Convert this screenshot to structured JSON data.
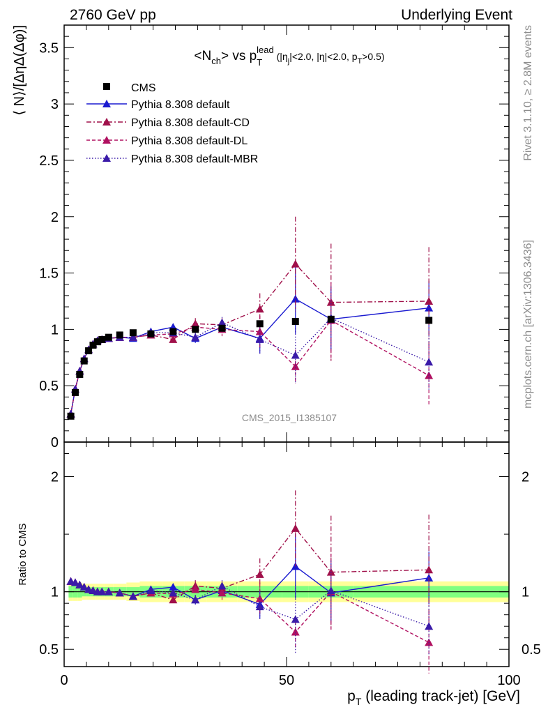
{
  "header": {
    "left": "2760 GeV pp",
    "right": "Underlying Event"
  },
  "side": {
    "rivet": "Rivet 3.1.10, ≥ 2.8M events",
    "mcplots": "mcplots.cern.ch [arXiv:1306.3436]"
  },
  "watermark": "CMS_2015_I1385107",
  "title_parts": {
    "a": "<N",
    "a_sub": "ch",
    "b": "> vs p",
    "b_sub": "T",
    "b_sup": "lead",
    "c": " (|η",
    "c_sub": "j",
    "d": "|<2.0, |η|<2.0, p",
    "d_sub": "T",
    "e": ">0.5)"
  },
  "colors": {
    "data": "#000000",
    "default": "#1a1ad0",
    "cd": "#a0104a",
    "dl": "#b01060",
    "mbr": "#3a1aa8",
    "band_inner": "#80ff80",
    "band_outer": "#ffff99"
  },
  "chart_data": [
    {
      "type": "scatter",
      "name": "main",
      "ylabel": "⟨ N⟩/[ΔηΔ(Δφ)]",
      "xlim": [
        0,
        100
      ],
      "ylim": [
        0,
        3.7
      ],
      "y_ticks": [
        0,
        0.5,
        1,
        1.5,
        2,
        2.5,
        3,
        3.5
      ],
      "y_tick_labels": [
        "0",
        "0.5",
        "1",
        "1.5",
        "2",
        "2.5",
        "3",
        "3.5"
      ],
      "legend_position": "top-left",
      "series": [
        {
          "name": "CMS",
          "key": "data",
          "x": [
            1.5,
            2.5,
            3.5,
            4.5,
            5.5,
            6.5,
            7.5,
            8.5,
            10,
            12.5,
            15.5,
            19.5,
            24.5,
            29.5,
            35.5,
            44,
            52,
            60,
            82
          ],
          "y": [
            0.23,
            0.44,
            0.6,
            0.72,
            0.81,
            0.86,
            0.89,
            0.91,
            0.93,
            0.95,
            0.97,
            0.96,
            0.98,
            1.0,
            1.01,
            1.05,
            1.07,
            1.09,
            1.08
          ]
        },
        {
          "name": "Pythia 8.308 default",
          "key": "default",
          "x": [
            1.5,
            2.5,
            3.5,
            4.5,
            5.5,
            6.5,
            7.5,
            8.5,
            10,
            12.5,
            15.5,
            19.5,
            24.5,
            29.5,
            35.5,
            44,
            52,
            60,
            82
          ],
          "y": [
            0.25,
            0.47,
            0.63,
            0.74,
            0.82,
            0.87,
            0.9,
            0.91,
            0.92,
            0.93,
            0.92,
            0.98,
            1.02,
            0.92,
            1.02,
            0.92,
            1.27,
            1.09,
            1.19
          ],
          "err": [
            0.01,
            0.01,
            0.01,
            0.01,
            0.01,
            0.01,
            0.01,
            0.01,
            0.01,
            0.01,
            0.02,
            0.02,
            0.03,
            0.04,
            0.05,
            0.13,
            0.31,
            0.28,
            0.24
          ]
        },
        {
          "name": "Pythia 8.308 default-CD",
          "key": "cd",
          "x": [
            1.5,
            2.5,
            3.5,
            4.5,
            5.5,
            6.5,
            7.5,
            8.5,
            10,
            12.5,
            15.5,
            19.5,
            24.5,
            29.5,
            35.5,
            44,
            52,
            60,
            82
          ],
          "y": [
            0.25,
            0.47,
            0.63,
            0.74,
            0.82,
            0.87,
            0.9,
            0.91,
            0.92,
            0.93,
            0.93,
            0.95,
            0.91,
            1.05,
            1.04,
            1.18,
            1.58,
            1.24,
            1.25
          ],
          "err": [
            0.01,
            0.01,
            0.01,
            0.01,
            0.01,
            0.01,
            0.01,
            0.01,
            0.01,
            0.01,
            0.02,
            0.02,
            0.03,
            0.05,
            0.06,
            0.14,
            0.42,
            0.52,
            0.48
          ]
        },
        {
          "name": "Pythia 8.308 default-DL",
          "key": "dl",
          "x": [
            1.5,
            2.5,
            3.5,
            4.5,
            5.5,
            6.5,
            7.5,
            8.5,
            10,
            12.5,
            15.5,
            19.5,
            24.5,
            29.5,
            35.5,
            44,
            52,
            60,
            82
          ],
          "y": [
            0.25,
            0.47,
            0.63,
            0.74,
            0.82,
            0.87,
            0.9,
            0.91,
            0.92,
            0.93,
            0.93,
            0.95,
            0.96,
            1.02,
            1.0,
            0.98,
            0.67,
            1.08,
            0.59
          ],
          "err": [
            0.01,
            0.01,
            0.01,
            0.01,
            0.01,
            0.01,
            0.01,
            0.01,
            0.01,
            0.01,
            0.02,
            0.02,
            0.03,
            0.05,
            0.06,
            0.14,
            0.15,
            0.34,
            0.27
          ]
        },
        {
          "name": "Pythia 8.308 default-MBR",
          "key": "mbr",
          "x": [
            1.5,
            2.5,
            3.5,
            4.5,
            5.5,
            6.5,
            7.5,
            8.5,
            10,
            12.5,
            15.5,
            19.5,
            24.5,
            29.5,
            35.5,
            44,
            52,
            60,
            82
          ],
          "y": [
            0.25,
            0.47,
            0.63,
            0.74,
            0.82,
            0.87,
            0.9,
            0.91,
            0.92,
            0.93,
            0.93,
            0.97,
            0.97,
            0.93,
            1.06,
            0.91,
            0.77,
            1.1,
            0.71
          ],
          "err": [
            0.01,
            0.01,
            0.01,
            0.01,
            0.01,
            0.01,
            0.01,
            0.01,
            0.01,
            0.01,
            0.02,
            0.02,
            0.03,
            0.04,
            0.05,
            0.13,
            0.24,
            0.28,
            0.26
          ]
        }
      ]
    },
    {
      "type": "scatter",
      "name": "ratio",
      "ylabel": "Ratio to CMS",
      "xlabel": "p_T (leading track-jet) [GeV]",
      "xlabel_main": "p",
      "xlabel_sub": "T",
      "xlabel_rest": " (leading track-jet) [GeV]",
      "xlim": [
        0,
        100
      ],
      "ylim": [
        0.35,
        2.3
      ],
      "x_ticks": [
        0,
        50,
        100
      ],
      "x_tick_labels": [
        "0",
        "50",
        "100"
      ],
      "y_ticks": [
        0.5,
        1,
        2
      ],
      "y_tick_labels": [
        "0.5",
        "1",
        "2"
      ],
      "band": {
        "x": [
          1,
          2,
          3,
          4,
          5,
          6,
          7,
          8,
          9,
          11,
          14,
          17,
          22,
          27,
          32,
          39,
          49,
          55,
          65,
          100
        ],
        "inner": [
          0.05,
          0.05,
          0.05,
          0.04,
          0.04,
          0.04,
          0.04,
          0.04,
          0.04,
          0.04,
          0.04,
          0.05,
          0.05,
          0.05,
          0.05,
          0.05,
          0.05,
          0.05,
          0.05
        ],
        "outer": [
          0.08,
          0.08,
          0.08,
          0.07,
          0.07,
          0.07,
          0.07,
          0.07,
          0.07,
          0.07,
          0.08,
          0.09,
          0.09,
          0.09,
          0.09,
          0.09,
          0.09,
          0.09,
          0.09
        ]
      },
      "series": [
        {
          "key": "default",
          "x": [
            1.5,
            2.5,
            3.5,
            4.5,
            5.5,
            6.5,
            7.5,
            8.5,
            10,
            12.5,
            15.5,
            19.5,
            24.5,
            29.5,
            35.5,
            44,
            52,
            60,
            82
          ],
          "y": [
            1.09,
            1.08,
            1.06,
            1.04,
            1.02,
            1.01,
            1.0,
            1.0,
            1.0,
            0.99,
            0.96,
            1.02,
            1.04,
            0.93,
            1.01,
            0.89,
            1.22,
            0.99,
            1.12
          ],
          "err": [
            0.02,
            0.02,
            0.02,
            0.02,
            0.01,
            0.01,
            0.01,
            0.01,
            0.01,
            0.01,
            0.02,
            0.02,
            0.03,
            0.04,
            0.05,
            0.12,
            0.28,
            0.26,
            0.23
          ]
        },
        {
          "key": "cd",
          "x": [
            1.5,
            2.5,
            3.5,
            4.5,
            5.5,
            6.5,
            7.5,
            8.5,
            10,
            12.5,
            15.5,
            19.5,
            24.5,
            29.5,
            35.5,
            44,
            52,
            60,
            82
          ],
          "y": [
            1.09,
            1.08,
            1.06,
            1.04,
            1.02,
            1.01,
            1.0,
            1.0,
            1.0,
            0.99,
            0.96,
            0.99,
            0.93,
            1.05,
            1.03,
            1.15,
            1.55,
            1.17,
            1.19
          ],
          "err": [
            0.02,
            0.02,
            0.02,
            0.02,
            0.01,
            0.01,
            0.01,
            0.01,
            0.01,
            0.01,
            0.02,
            0.02,
            0.03,
            0.05,
            0.06,
            0.14,
            0.33,
            0.49,
            0.48
          ]
        },
        {
          "key": "dl",
          "x": [
            1.5,
            2.5,
            3.5,
            4.5,
            5.5,
            6.5,
            7.5,
            8.5,
            10,
            12.5,
            15.5,
            19.5,
            24.5,
            29.5,
            35.5,
            44,
            52,
            60,
            82
          ],
          "y": [
            1.09,
            1.08,
            1.06,
            1.04,
            1.02,
            1.01,
            1.0,
            1.0,
            1.0,
            0.99,
            0.96,
            0.99,
            0.98,
            1.02,
            0.99,
            0.94,
            0.65,
            1.0,
            0.56
          ],
          "err": [
            0.02,
            0.02,
            0.02,
            0.02,
            0.01,
            0.01,
            0.01,
            0.01,
            0.01,
            0.01,
            0.02,
            0.02,
            0.03,
            0.05,
            0.06,
            0.14,
            0.14,
            0.33,
            0.27
          ]
        },
        {
          "key": "mbr",
          "x": [
            1.5,
            2.5,
            3.5,
            4.5,
            5.5,
            6.5,
            7.5,
            8.5,
            10,
            12.5,
            15.5,
            19.5,
            24.5,
            29.5,
            35.5,
            44,
            52,
            60,
            82
          ],
          "y": [
            1.09,
            1.08,
            1.06,
            1.04,
            1.02,
            1.01,
            1.0,
            1.0,
            1.0,
            0.99,
            0.96,
            1.01,
            0.99,
            0.93,
            1.05,
            0.87,
            0.76,
            1.01,
            0.7
          ],
          "err": [
            0.02,
            0.02,
            0.02,
            0.02,
            0.01,
            0.01,
            0.01,
            0.01,
            0.01,
            0.01,
            0.02,
            0.02,
            0.03,
            0.04,
            0.05,
            0.12,
            0.3,
            0.26,
            0.25
          ]
        }
      ]
    }
  ]
}
